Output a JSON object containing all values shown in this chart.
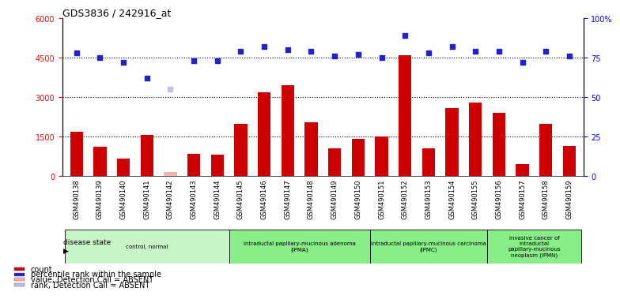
{
  "title": "GDS3836 / 242916_at",
  "samples": [
    "GSM490138",
    "GSM490139",
    "GSM490140",
    "GSM490141",
    "GSM490142",
    "GSM490143",
    "GSM490144",
    "GSM490145",
    "GSM490146",
    "GSM490147",
    "GSM490148",
    "GSM490149",
    "GSM490150",
    "GSM490151",
    "GSM490152",
    "GSM490153",
    "GSM490154",
    "GSM490155",
    "GSM490156",
    "GSM490157",
    "GSM490158",
    "GSM490159"
  ],
  "counts": [
    1700,
    1100,
    650,
    1550,
    150,
    850,
    800,
    2000,
    3200,
    3450,
    2050,
    1050,
    1400,
    1500,
    4600,
    1050,
    2600,
    2800,
    2400,
    450,
    2000,
    1150
  ],
  "absent_count_idx": [
    4
  ],
  "ranks": [
    78,
    75,
    72,
    62,
    55,
    73,
    73,
    79,
    82,
    80,
    79,
    76,
    77,
    75,
    89,
    78,
    82,
    79,
    79,
    72,
    79,
    76
  ],
  "absent_rank_idx": [
    4
  ],
  "ylim_left": [
    0,
    6000
  ],
  "ylim_right": [
    0,
    100
  ],
  "yticks_left": [
    0,
    1500,
    3000,
    4500,
    6000
  ],
  "ytick_labels_left": [
    "0",
    "1500",
    "3000",
    "4500",
    "6000"
  ],
  "yticks_right": [
    0,
    25,
    50,
    75,
    100
  ],
  "ytick_labels_right": [
    "0",
    "25",
    "50",
    "75",
    "100%"
  ],
  "bar_color": "#cc0000",
  "absent_bar_color": "#ffb0b0",
  "scatter_color": "#2222cc",
  "absent_scatter_color": "#c0c0e8",
  "groups": [
    {
      "label": "control, normal",
      "start": 0,
      "end": 7,
      "color": "#c8f5c8"
    },
    {
      "label": "intraductal papillary-mucinous adenoma\n(IPMA)",
      "start": 7,
      "end": 13,
      "color": "#88ee88"
    },
    {
      "label": "intraductal papillary-mucinous carcinoma\n(IPMC)",
      "start": 13,
      "end": 18,
      "color": "#88ee88"
    },
    {
      "label": "invasive cancer of\nintraductal\npapillary-mucinous\nneoplasm (IPMN)",
      "start": 18,
      "end": 22,
      "color": "#88ee88"
    }
  ],
  "legend_labels": [
    "count",
    "percentile rank within the sample",
    "value, Detection Call = ABSENT",
    "rank, Detection Call = ABSENT"
  ],
  "legend_colors": [
    "#cc0000",
    "#2222cc",
    "#ffb0b0",
    "#c0c0e8"
  ],
  "disease_state_label": "disease state",
  "xtick_bg_color": "#d0d0d0",
  "plot_bg_color": "#ffffff"
}
